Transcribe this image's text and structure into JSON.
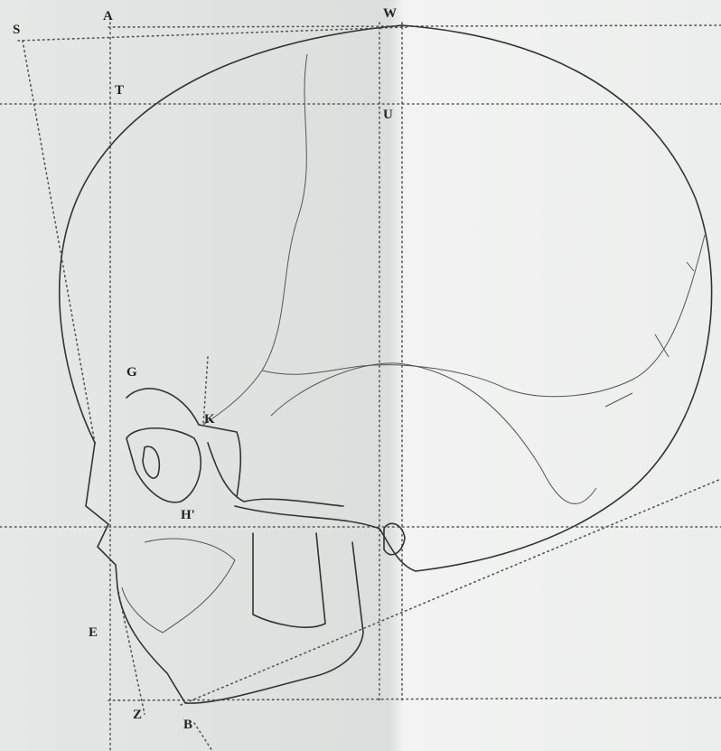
{
  "labels": [
    "S",
    "A",
    "W",
    "T",
    "U",
    "G",
    "K",
    "H'",
    "E",
    "Z",
    "B"
  ]
}
